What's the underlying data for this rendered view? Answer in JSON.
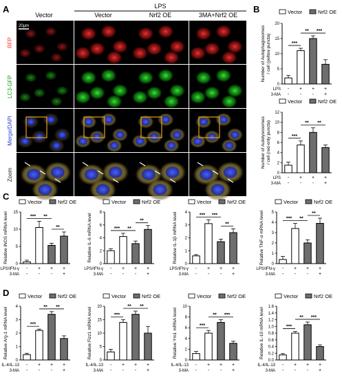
{
  "panel_labels": {
    "a": "A",
    "b": "B",
    "c": "C",
    "d": "D"
  },
  "panel_a": {
    "lps_header": "LPS",
    "columns": [
      "Vector",
      "Vector",
      "Nrf2 OE",
      "3MA+Nrf2 OE"
    ],
    "rows": [
      "RFP",
      "LC3-GFP",
      "Merge/DAPI",
      "Zoom"
    ],
    "scale_bar": "20μm",
    "row_colors": {
      "RFP": "#ff2b2b",
      "LC3-GFP": "#2fd02f",
      "Merge/DAPI": "#3a4cff",
      "Zoom": "#222222"
    }
  },
  "legend": {
    "vector": "Vector",
    "nrf2": "Nrf2 OE"
  },
  "colors": {
    "vector_bar": "#ffffff",
    "nrf2_bar": "#6e6e6e",
    "outline": "#000000"
  },
  "chart_data": [
    {
      "id": "b1",
      "type": "bar",
      "ylabel": "Number of Autophagosomes / cell (yellow puncta)",
      "categories": [
        "1",
        "2",
        "3",
        "4"
      ],
      "values": [
        2,
        11,
        15,
        6.5
      ],
      "errors": [
        0.8,
        0.8,
        0.9,
        1.5
      ],
      "ylim": [
        0,
        20
      ],
      "yticks": [
        "0",
        "5",
        "10",
        "15",
        "20"
      ],
      "sig": [
        {
          "from": 0,
          "to": 1,
          "label": "***"
        },
        {
          "from": 1,
          "to": 2,
          "label": "**"
        },
        {
          "from": 2,
          "to": 3,
          "label": "***"
        }
      ],
      "treatments": [
        {
          "label": "LPS",
          "marks": [
            "-",
            "+",
            "+",
            "+"
          ]
        },
        {
          "label": "3-MA",
          "marks": [
            "-",
            "-",
            "-",
            "+"
          ]
        }
      ]
    },
    {
      "id": "b2",
      "type": "bar",
      "ylabel": "Number of Autolysosomes / cell (red-only puncta)",
      "categories": [
        "1",
        "2",
        "3",
        "4"
      ],
      "values": [
        1.5,
        5.5,
        8,
        5
      ],
      "errors": [
        0.6,
        0.8,
        0.9,
        0.5
      ],
      "ylim": [
        0,
        12
      ],
      "yticks": [
        "0",
        "2",
        "4",
        "6",
        "8",
        "10",
        "12"
      ],
      "sig": [
        {
          "from": 0,
          "to": 1,
          "label": "***"
        },
        {
          "from": 1,
          "to": 2,
          "label": "**"
        },
        {
          "from": 2,
          "to": 3,
          "label": "**"
        }
      ],
      "treatments": [
        {
          "label": "LPS",
          "marks": [
            "-",
            "+",
            "+",
            "+"
          ]
        },
        {
          "label": "3-MA",
          "marks": [
            "-",
            "-",
            "-",
            "+"
          ]
        }
      ]
    },
    {
      "id": "c1",
      "type": "bar",
      "ylabel": "Relative iNOS mRNA level",
      "categories": [
        "1",
        "2",
        "3",
        "4"
      ],
      "values": [
        0.5,
        10.5,
        5.3,
        8
      ],
      "errors": [
        0.5,
        1.8,
        0.6,
        1.2
      ],
      "ylim": [
        0,
        15
      ],
      "yticks": [
        "0",
        "5",
        "10",
        "15"
      ],
      "sig": [
        {
          "from": 0,
          "to": 1,
          "label": "***"
        },
        {
          "from": 1,
          "to": 2,
          "label": "**"
        },
        {
          "from": 2,
          "to": 3,
          "label": "**"
        }
      ],
      "treatments": [
        {
          "label": "LPS/IFN-γ",
          "marks": [
            "-",
            "+",
            "+",
            "+"
          ]
        },
        {
          "label": "3-MA",
          "marks": [
            "-",
            "-",
            "-",
            "+"
          ]
        }
      ]
    },
    {
      "id": "c2",
      "type": "bar",
      "ylabel": "Relative IL-6 mRNA level",
      "categories": [
        "1",
        "2",
        "3",
        "4"
      ],
      "values": [
        2,
        4.2,
        3.1,
        5.3
      ],
      "errors": [
        0.3,
        0.5,
        0.4,
        0.6
      ],
      "ylim": [
        0,
        8
      ],
      "yticks": [
        "0",
        "2",
        "4",
        "6",
        "8"
      ],
      "sig": [
        {
          "from": 0,
          "to": 1,
          "label": "***"
        },
        {
          "from": 1,
          "to": 2,
          "label": "**"
        },
        {
          "from": 2,
          "to": 3,
          "label": "**"
        }
      ],
      "treatments": [
        {
          "label": "LPS/IFN-γ",
          "marks": [
            "-",
            "+",
            "+",
            "+"
          ]
        },
        {
          "label": "3-MA",
          "marks": [
            "-",
            "-",
            "-",
            "+"
          ]
        }
      ]
    },
    {
      "id": "c3",
      "type": "bar",
      "ylabel": "Relative IL-1β mRNA level",
      "categories": [
        "1",
        "2",
        "3",
        "4"
      ],
      "values": [
        0.6,
        3.1,
        1.7,
        2.4
      ],
      "errors": [
        0.1,
        0.3,
        0.2,
        0.3
      ],
      "ylim": [
        0,
        4
      ],
      "yticks": [
        "0",
        "1",
        "2",
        "3",
        "4"
      ],
      "sig": [
        {
          "from": 0,
          "to": 1,
          "label": "***"
        },
        {
          "from": 1,
          "to": 2,
          "label": "***"
        },
        {
          "from": 2,
          "to": 3,
          "label": "**"
        }
      ],
      "treatments": [
        {
          "label": "LPS/IFN-γ",
          "marks": [
            "-",
            "+",
            "+",
            "+"
          ]
        },
        {
          "label": "3-MA",
          "marks": [
            "-",
            "-",
            "-",
            "+"
          ]
        }
      ]
    },
    {
      "id": "c4",
      "type": "bar",
      "ylabel": "Relative TNF-α mRNA level",
      "categories": [
        "1",
        "2",
        "3",
        "4"
      ],
      "values": [
        0.4,
        3.4,
        2,
        3.9
      ],
      "errors": [
        0.3,
        0.5,
        0.3,
        0.5
      ],
      "ylim": [
        0,
        5
      ],
      "yticks": [
        "0",
        "1",
        "2",
        "3",
        "4",
        "5"
      ],
      "sig": [
        {
          "from": 0,
          "to": 1,
          "label": "***"
        },
        {
          "from": 1,
          "to": 2,
          "label": "**"
        },
        {
          "from": 2,
          "to": 3,
          "label": "**"
        }
      ],
      "treatments": [
        {
          "label": "LPS/IFN-γ",
          "marks": [
            "-",
            "+",
            "+",
            "+"
          ]
        },
        {
          "label": "3-MA",
          "marks": [
            "-",
            "-",
            "-",
            "+"
          ]
        }
      ]
    },
    {
      "id": "d1",
      "type": "bar",
      "ylabel": "Relative Arg-1 mRNA level",
      "categories": [
        "1",
        "2",
        "3",
        "4"
      ],
      "values": [
        0.4,
        2.2,
        3.4,
        1.6
      ],
      "errors": [
        0.1,
        0.1,
        0.2,
        0.2
      ],
      "ylim": [
        0,
        4
      ],
      "yticks": [
        "0",
        "1",
        "2",
        "3",
        "4"
      ],
      "sig": [
        {
          "from": 0,
          "to": 1,
          "label": "***"
        },
        {
          "from": 1,
          "to": 2,
          "label": "**"
        },
        {
          "from": 2,
          "to": 3,
          "label": "**"
        }
      ],
      "treatments": [
        {
          "label": "IL-4/IL-13",
          "marks": [
            "-",
            "+",
            "+",
            "+"
          ]
        },
        {
          "label": "3-MA",
          "marks": [
            "-",
            "-",
            "-",
            "+"
          ]
        }
      ]
    },
    {
      "id": "d2",
      "type": "bar",
      "ylabel": "Relative Fizz1 mRNA level",
      "categories": [
        "1",
        "2",
        "3",
        "4"
      ],
      "values": [
        3,
        14,
        17,
        10
      ],
      "errors": [
        1,
        1,
        1.2,
        2.5
      ],
      "ylim": [
        0,
        20
      ],
      "yticks": [
        "0",
        "5",
        "10",
        "15",
        "20"
      ],
      "sig": [
        {
          "from": 0,
          "to": 1,
          "label": "***"
        },
        {
          "from": 1,
          "to": 2,
          "label": "**"
        },
        {
          "from": 2,
          "to": 3,
          "label": "**"
        }
      ],
      "treatments": [
        {
          "label": "IL-4/IL-13",
          "marks": [
            "-",
            "+",
            "+",
            "+"
          ]
        },
        {
          "label": "3-MA",
          "marks": [
            "-",
            "-",
            "-",
            "+"
          ]
        }
      ]
    },
    {
      "id": "d3",
      "type": "bar",
      "ylabel": "Relative Ym1 mRNA level",
      "categories": [
        "1",
        "2",
        "3",
        "4"
      ],
      "values": [
        1.2,
        5,
        7,
        3.1
      ],
      "errors": [
        0.4,
        0.5,
        0.5,
        0.4
      ],
      "ylim": [
        0,
        10
      ],
      "yticks": [
        "0",
        "2",
        "4",
        "6",
        "8",
        "10"
      ],
      "sig": [
        {
          "from": 0,
          "to": 1,
          "label": "***"
        },
        {
          "from": 1,
          "to": 2,
          "label": "**"
        },
        {
          "from": 2,
          "to": 3,
          "label": "***"
        }
      ],
      "treatments": [
        {
          "label": "IL-4/IL-13",
          "marks": [
            "-",
            "+",
            "+",
            "+"
          ]
        },
        {
          "label": "3-MA",
          "marks": [
            "-",
            "-",
            "-",
            "+"
          ]
        }
      ]
    },
    {
      "id": "d4",
      "type": "bar",
      "ylabel": "Relative IL-10 mRNA level",
      "categories": [
        "1",
        "2",
        "3",
        "4"
      ],
      "values": [
        0.15,
        0.8,
        1.05,
        0.4
      ],
      "errors": [
        0.04,
        0.05,
        0.08,
        0.05
      ],
      "ylim": [
        0,
        1.6
      ],
      "yticks": [
        "0.0",
        "0.2",
        "0.4",
        "0.6",
        "0.8",
        "1.0",
        "1.2",
        "1.4",
        "1.6"
      ],
      "sig": [
        {
          "from": 0,
          "to": 1,
          "label": "***"
        },
        {
          "from": 1,
          "to": 2,
          "label": "**"
        },
        {
          "from": 2,
          "to": 3,
          "label": "***"
        }
      ],
      "treatments": [
        {
          "label": "IL-4/IL-13",
          "marks": [
            "-",
            "+",
            "+",
            "+"
          ]
        },
        {
          "label": "3-MA",
          "marks": [
            "-",
            "-",
            "-",
            "+"
          ]
        }
      ]
    }
  ]
}
